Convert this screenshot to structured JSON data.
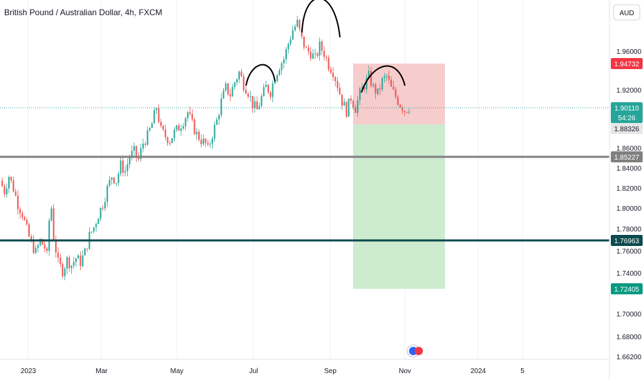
{
  "chart_data": {
    "type": "candlestick",
    "title": "British Pound / Australian Dollar, 4h, FXCM",
    "currency": "AUD",
    "y_ticks": [
      "1.96000",
      "1.92000",
      "1.86000",
      "1.84000",
      "1.82000",
      "1.80000",
      "1.78000",
      "1.76000",
      "1.74000",
      "1.70000",
      "1.68000",
      "1.66200"
    ],
    "y_tick_values": [
      1.96,
      1.92,
      1.86,
      1.84,
      1.82,
      1.8,
      1.78,
      1.76,
      1.74,
      1.7,
      1.68,
      1.662
    ],
    "x_ticks": [
      "2023",
      "Mar",
      "May",
      "Jul",
      "Sep",
      "Nov",
      "2024",
      "5"
    ],
    "current_price": {
      "value": "1.90110",
      "countdown": "54:26",
      "color": "#26a69a"
    },
    "horizontal_lines": [
      {
        "label": "1.85227",
        "value": 1.85227,
        "color": "#808080"
      },
      {
        "label": "1.76963",
        "value": 1.76963,
        "color": "#0c4a4f"
      }
    ],
    "position": {
      "type": "short",
      "entry": {
        "label": "1.88326",
        "value": 1.88326
      },
      "stop": {
        "label": "1.94732",
        "value": 1.94732,
        "color": "#f23645"
      },
      "target": {
        "label": "1.72405",
        "value": 1.72405,
        "color": "#089981"
      }
    },
    "annotations": [
      "arc left shoulder",
      "arc head",
      "arc right shoulder"
    ],
    "price_path": [
      [
        0,
        1.826
      ],
      [
        2,
        1.815
      ],
      [
        4,
        1.831
      ],
      [
        6,
        1.818
      ],
      [
        8,
        1.802
      ],
      [
        10,
        1.792
      ],
      [
        12,
        1.775
      ],
      [
        14,
        1.761
      ],
      [
        16,
        1.752
      ],
      [
        18,
        1.764
      ],
      [
        20,
        1.757
      ],
      [
        21,
        1.748
      ],
      [
        22,
        1.785
      ],
      [
        23,
        1.798
      ],
      [
        24,
        1.768
      ],
      [
        26,
        1.741
      ],
      [
        28,
        1.733
      ],
      [
        30,
        1.744
      ],
      [
        32,
        1.739
      ],
      [
        34,
        1.746
      ],
      [
        36,
        1.742
      ],
      [
        38,
        1.752
      ],
      [
        40,
        1.769
      ],
      [
        42,
        1.778
      ],
      [
        44,
        1.791
      ],
      [
        46,
        1.802
      ],
      [
        48,
        1.818
      ],
      [
        50,
        1.831
      ],
      [
        52,
        1.826
      ],
      [
        54,
        1.842
      ],
      [
        56,
        1.836
      ],
      [
        58,
        1.851
      ],
      [
        60,
        1.856
      ],
      [
        62,
        1.848
      ],
      [
        64,
        1.865
      ],
      [
        66,
        1.872
      ],
      [
        68,
        1.885
      ],
      [
        70,
        1.902
      ],
      [
        72,
        1.878
      ],
      [
        74,
        1.872
      ],
      [
        76,
        1.868
      ],
      [
        78,
        1.876
      ],
      [
        80,
        1.881
      ],
      [
        82,
        1.888
      ],
      [
        84,
        1.897
      ],
      [
        86,
        1.884
      ],
      [
        88,
        1.874
      ],
      [
        90,
        1.868
      ],
      [
        92,
        1.864
      ],
      [
        93,
        1.858
      ],
      [
        95,
        1.874
      ],
      [
        97,
        1.888
      ],
      [
        99,
        1.908
      ],
      [
        101,
        1.922
      ],
      [
        103,
        1.915
      ],
      [
        105,
        1.928
      ],
      [
        107,
        1.938
      ],
      [
        109,
        1.926
      ],
      [
        111,
        1.918
      ],
      [
        113,
        1.905
      ],
      [
        115,
        1.899
      ],
      [
        117,
        1.912
      ],
      [
        119,
        1.923
      ],
      [
        121,
        1.918
      ],
      [
        123,
        1.934
      ],
      [
        125,
        1.945
      ],
      [
        127,
        1.952
      ],
      [
        129,
        1.968
      ],
      [
        131,
        1.982
      ],
      [
        133,
        1.989
      ],
      [
        135,
        1.972
      ],
      [
        137,
        1.961
      ],
      [
        139,
        1.958
      ],
      [
        141,
        1.952
      ],
      [
        143,
        1.965
      ],
      [
        145,
        1.958
      ],
      [
        147,
        1.946
      ],
      [
        149,
        1.939
      ],
      [
        151,
        1.925
      ],
      [
        153,
        1.908
      ],
      [
        155,
        1.898
      ],
      [
        157,
        1.912
      ],
      [
        159,
        1.901
      ],
      [
        161,
        1.916
      ],
      [
        163,
        1.925
      ],
      [
        165,
        1.934
      ],
      [
        167,
        1.922
      ],
      [
        169,
        1.916
      ],
      [
        171,
        1.929
      ],
      [
        173,
        1.934
      ],
      [
        175,
        1.921
      ],
      [
        177,
        1.913
      ],
      [
        179,
        1.905
      ],
      [
        181,
        1.899
      ],
      [
        183,
        1.902
      ]
    ]
  }
}
